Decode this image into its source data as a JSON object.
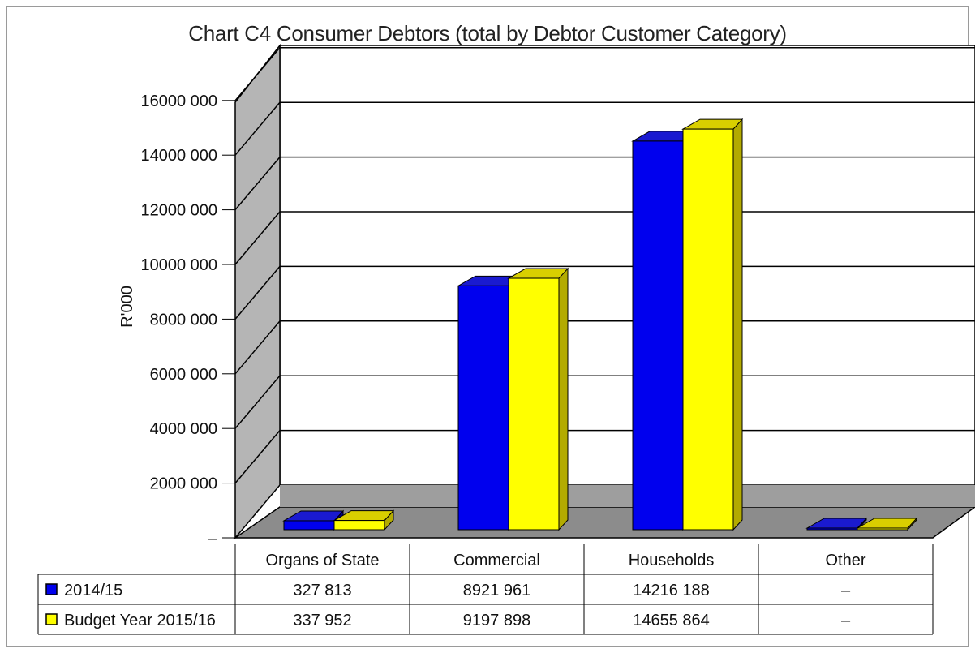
{
  "chart_data": {
    "type": "bar",
    "title": "Chart C4 Consumer Debtors (total by Debtor Customer Category)",
    "ylabel": "R'000",
    "xlabel": "",
    "ylim": [
      0,
      16000000
    ],
    "y_ticks": [
      "–",
      "2000 000",
      "4000 000",
      "6000 000",
      "8000 000",
      "10000 000",
      "12000 000",
      "14000 000",
      "16000 000"
    ],
    "categories": [
      "Organs of State",
      "Commercial",
      "Households",
      "Other"
    ],
    "series": [
      {
        "name": "2014/15",
        "color": "#0000ee",
        "side_color": "#00008b",
        "top_color": "#1a1ad0",
        "values": [
          327813,
          8921961,
          14216188,
          0
        ],
        "labels": [
          "327 813",
          "8921 961",
          "14216 188",
          "–"
        ]
      },
      {
        "name": "Budget Year 2015/16",
        "color": "#ffff00",
        "side_color": "#b3ab00",
        "top_color": "#d9cf00",
        "values": [
          337952,
          9197898,
          14655864,
          0
        ],
        "labels": [
          "337 952",
          "9197 898",
          "14655 864",
          "–"
        ]
      }
    ],
    "grid": true,
    "legend_placement": "data-table",
    "style": "3d-clustered-column"
  }
}
